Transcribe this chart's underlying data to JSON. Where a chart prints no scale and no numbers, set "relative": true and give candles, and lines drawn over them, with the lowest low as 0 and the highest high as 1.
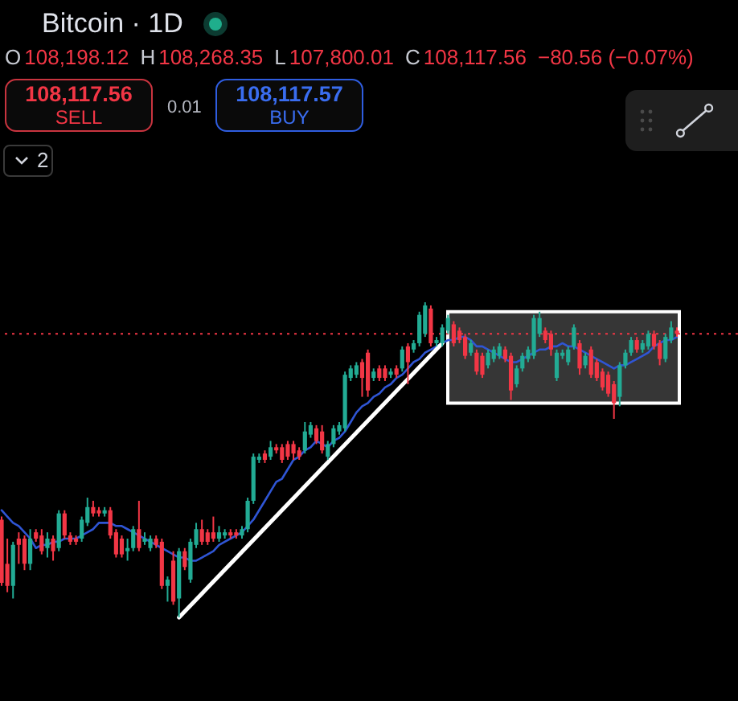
{
  "chart_data": {
    "type": "candlestick",
    "title": "Bitcoin · 1D",
    "annotations": [
      "O",
      "108,198.12",
      "H",
      "108,268.35",
      "L",
      "107,800.01",
      "C",
      "108,117.56",
      "−80.56 (−0.07%)",
      "108,117.56",
      "SELL",
      "0.01",
      "108,117.57",
      "BUY",
      "2"
    ],
    "relative": true,
    "categories": [
      null,
      null,
      null,
      null,
      null,
      null,
      null,
      null,
      null,
      null,
      null,
      null,
      null,
      null,
      null,
      null,
      null,
      null,
      null,
      null,
      null,
      null,
      null,
      null,
      null,
      null,
      null,
      null,
      null,
      null,
      null,
      null,
      null,
      null,
      null,
      null,
      null,
      null,
      null,
      null,
      null,
      null,
      null,
      null,
      null,
      null,
      null,
      null,
      null,
      null,
      null,
      null,
      null,
      null,
      null,
      null,
      null,
      null,
      null,
      null,
      null,
      null,
      null,
      null,
      null,
      null,
      null,
      null,
      null,
      null,
      null,
      null,
      null,
      null,
      null,
      null,
      null,
      null,
      null,
      null,
      null,
      null,
      null,
      null,
      null,
      null,
      null,
      null,
      null,
      null,
      null,
      null,
      null,
      null,
      null,
      null,
      null,
      null,
      null,
      null,
      null,
      null,
      null,
      null,
      null,
      null,
      null,
      null,
      null,
      null,
      null,
      null,
      null,
      null,
      null,
      null,
      null,
      null,
      null
    ],
    "ohlc": [
      [
        0.31,
        0.32,
        0.1,
        0.11
      ],
      [
        0.17,
        0.25,
        0.08,
        0.1
      ],
      [
        0.1,
        0.24,
        0.06,
        0.23
      ],
      [
        0.25,
        0.27,
        0.17,
        0.23
      ],
      [
        0.25,
        0.26,
        0.15,
        0.17
      ],
      [
        0.17,
        0.28,
        0.15,
        0.25
      ],
      [
        0.27,
        0.28,
        0.24,
        0.25
      ],
      [
        0.26,
        0.28,
        0.2,
        0.21
      ],
      [
        0.22,
        0.27,
        0.19,
        0.25
      ],
      [
        0.25,
        0.26,
        0.18,
        0.21
      ],
      [
        0.22,
        0.34,
        0.21,
        0.33
      ],
      [
        0.33,
        0.34,
        0.25,
        0.26
      ],
      [
        0.26,
        0.27,
        0.23,
        0.24
      ],
      [
        0.25,
        0.26,
        0.23,
        0.24
      ],
      [
        0.25,
        0.32,
        0.24,
        0.31
      ],
      [
        0.3,
        0.38,
        0.29,
        0.35
      ],
      [
        0.35,
        0.37,
        0.32,
        0.33
      ],
      [
        0.34,
        0.35,
        0.32,
        0.33
      ],
      [
        0.33,
        0.35,
        0.32,
        0.34
      ],
      [
        0.34,
        0.35,
        0.25,
        0.26
      ],
      [
        0.27,
        0.28,
        0.19,
        0.2
      ],
      [
        0.25,
        0.26,
        0.19,
        0.2
      ],
      [
        0.21,
        0.25,
        0.18,
        0.22
      ],
      [
        0.22,
        0.29,
        0.21,
        0.28
      ],
      [
        0.28,
        0.37,
        0.21,
        0.22
      ],
      [
        0.24,
        0.27,
        0.23,
        0.25
      ],
      [
        0.22,
        0.26,
        0.21,
        0.25
      ],
      [
        0.25,
        0.26,
        0.22,
        0.23
      ],
      [
        0.24,
        0.25,
        0.09,
        0.1
      ],
      [
        0.1,
        0.13,
        0.05,
        0.12
      ],
      [
        0.18,
        0.21,
        0.04,
        0.05
      ],
      [
        0.06,
        0.22,
        0,
        0.21
      ],
      [
        0.21,
        0.22,
        0.15,
        0.16
      ],
      [
        0.12,
        0.25,
        0.11,
        0.24
      ],
      [
        0.23,
        0.3,
        0.22,
        0.28
      ],
      [
        0.28,
        0.31,
        0.23,
        0.24
      ],
      [
        0.27,
        0.28,
        0.23,
        0.24
      ],
      [
        0.27,
        0.32,
        0.24,
        0.25
      ],
      [
        0.25,
        0.29,
        0.24,
        0.27
      ],
      [
        0.26,
        0.28,
        0.25,
        0.27
      ],
      [
        0.27,
        0.28,
        0.25,
        0.26
      ],
      [
        0.27,
        0.28,
        0.25,
        0.26
      ],
      [
        0.26,
        0.29,
        0.25,
        0.28
      ],
      [
        0.28,
        0.38,
        0.27,
        0.37
      ],
      [
        0.37,
        0.52,
        0.36,
        0.51
      ],
      [
        0.5,
        0.52,
        0.49,
        0.51
      ],
      [
        0.52,
        0.53,
        0.49,
        0.5
      ],
      [
        0.51,
        0.56,
        0.5,
        0.54
      ],
      [
        0.54,
        0.55,
        0.52,
        0.53
      ],
      [
        0.54,
        0.55,
        0.49,
        0.5
      ],
      [
        0.55,
        0.56,
        0.5,
        0.51
      ],
      [
        0.55,
        0.56,
        0.5,
        0.52
      ],
      [
        0.53,
        0.54,
        0.5,
        0.51
      ],
      [
        0.53,
        0.62,
        0.52,
        0.59
      ],
      [
        0.58,
        0.62,
        0.57,
        0.61
      ],
      [
        0.6,
        0.61,
        0.55,
        0.56
      ],
      [
        0.59,
        0.61,
        0.52,
        0.53
      ],
      [
        0.51,
        0.56,
        0.5,
        0.55
      ],
      [
        0.55,
        0.61,
        0.54,
        0.6
      ],
      [
        0.59,
        0.62,
        0.58,
        0.61
      ],
      [
        0.6,
        0.78,
        0.59,
        0.77
      ],
      [
        0.76,
        0.8,
        0.75,
        0.79
      ],
      [
        0.77,
        0.81,
        0.76,
        0.8
      ],
      [
        0.81,
        0.82,
        0.7,
        0.76
      ],
      [
        0.84,
        0.85,
        0.7,
        0.72
      ],
      [
        0.76,
        0.79,
        0.75,
        0.78
      ],
      [
        0.79,
        0.8,
        0.75,
        0.76
      ],
      [
        0.79,
        0.8,
        0.75,
        0.76
      ],
      [
        0.77,
        0.79,
        0.76,
        0.78
      ],
      [
        0.79,
        0.8,
        0.76,
        0.77
      ],
      [
        0.79,
        0.86,
        0.78,
        0.85
      ],
      [
        0.86,
        0.87,
        0.74,
        0.81
      ],
      [
        0.85,
        0.88,
        0.84,
        0.87
      ],
      [
        0.87,
        0.97,
        0.86,
        0.96
      ],
      [
        0.9,
        1,
        0.89,
        0.99
      ],
      [
        0.98,
        0.99,
        0.86,
        0.87
      ],
      [
        0.87,
        0.89,
        0.86,
        0.88
      ],
      [
        0.87,
        0.93,
        0.86,
        0.92
      ],
      [
        0.91,
        0.96,
        0.9,
        0.95
      ],
      [
        0.93,
        0.94,
        0.86,
        0.87
      ],
      [
        0.91,
        0.92,
        0.87,
        0.88
      ],
      [
        0.89,
        0.9,
        0.82,
        0.83
      ],
      [
        0.84,
        0.88,
        0.83,
        0.87
      ],
      [
        0.84,
        0.85,
        0.77,
        0.78
      ],
      [
        0.83,
        0.84,
        0.76,
        0.77
      ],
      [
        0.8,
        0.85,
        0.79,
        0.84
      ],
      [
        0.82,
        0.86,
        0.81,
        0.85
      ],
      [
        0.83,
        0.87,
        0.82,
        0.86
      ],
      [
        0.85,
        0.86,
        0.81,
        0.82
      ],
      [
        0.83,
        0.84,
        0.69,
        0.72
      ],
      [
        0.74,
        0.8,
        0.73,
        0.79
      ],
      [
        0.79,
        0.84,
        0.78,
        0.83
      ],
      [
        0.82,
        0.86,
        0.81,
        0.85
      ],
      [
        0.83,
        0.96,
        0.82,
        0.95
      ],
      [
        0.9,
        0.97,
        0.89,
        0.95
      ],
      [
        0.91,
        0.92,
        0.87,
        0.88
      ],
      [
        0.9,
        0.91,
        0.83,
        0.85
      ],
      [
        0.76,
        0.85,
        0.75,
        0.84
      ],
      [
        0.83,
        0.85,
        0.82,
        0.84
      ],
      [
        0.81,
        0.86,
        0.8,
        0.85
      ],
      [
        0.86,
        0.93,
        0.85,
        0.92
      ],
      [
        0.87,
        0.88,
        0.77,
        0.79
      ],
      [
        0.8,
        0.84,
        0.79,
        0.83
      ],
      [
        0.85,
        0.86,
        0.76,
        0.77
      ],
      [
        0.81,
        0.82,
        0.75,
        0.76
      ],
      [
        0.78,
        0.79,
        0.72,
        0.73
      ],
      [
        0.77,
        0.78,
        0.7,
        0.71
      ],
      [
        0.74,
        0.75,
        0.63,
        0.68
      ],
      [
        0.7,
        0.81,
        0.67,
        0.8
      ],
      [
        0.8,
        0.85,
        0.79,
        0.84
      ],
      [
        0.84,
        0.89,
        0.83,
        0.88
      ],
      [
        0.88,
        0.89,
        0.84,
        0.85
      ],
      [
        0.85,
        0.88,
        0.84,
        0.87
      ],
      [
        0.86,
        0.91,
        0.85,
        0.9
      ],
      [
        0.9,
        0.91,
        0.85,
        0.86
      ],
      [
        0.87,
        0.88,
        0.8,
        0.82
      ],
      [
        0.82,
        0.9,
        0.81,
        0.89
      ],
      [
        0.88,
        0.94,
        0.87,
        0.92
      ],
      [
        0.91,
        0.92,
        0.89,
        0.9
      ]
    ],
    "colors": [
      "#f23645",
      "#f23645",
      "#22ab94",
      "#f23645",
      "#f23645",
      "#22ab94",
      "#f23645",
      "#f23645",
      "#22ab94",
      "#f23645",
      "#22ab94",
      "#f23645",
      "#f23645",
      "#f23645",
      "#22ab94",
      "#22ab94",
      "#f23645",
      "#f23645",
      "#22ab94",
      "#f23645",
      "#f23645",
      "#f23645",
      "#22ab94",
      "#22ab94",
      "#f23645",
      "#22ab94",
      "#22ab94",
      "#f23645",
      "#f23645",
      "#22ab94",
      "#f23645",
      "#22ab94",
      "#f23645",
      "#22ab94",
      "#22ab94",
      "#f23645",
      "#f23645",
      "#f23645",
      "#22ab94",
      "#22ab94",
      "#f23645",
      "#f23645",
      "#22ab94",
      "#22ab94",
      "#22ab94",
      "#22ab94",
      "#f23645",
      "#22ab94",
      "#f23645",
      "#f23645",
      "#f23645",
      "#f23645",
      "#f23645",
      "#22ab94",
      "#22ab94",
      "#f23645",
      "#f23645",
      "#22ab94",
      "#22ab94",
      "#22ab94",
      "#22ab94",
      "#22ab94",
      "#22ab94",
      "#f23645",
      "#f23645",
      "#22ab94",
      "#f23645",
      "#f23645",
      "#22ab94",
      "#f23645",
      "#22ab94",
      "#f23645",
      "#22ab94",
      "#22ab94",
      "#22ab94",
      "#f23645",
      "#22ab94",
      "#22ab94",
      "#22ab94",
      "#f23645",
      "#f23645",
      "#f23645",
      "#22ab94",
      "#f23645",
      "#f23645",
      "#22ab94",
      "#22ab94",
      "#22ab94",
      "#f23645",
      "#f23645",
      "#22ab94",
      "#22ab94",
      "#22ab94",
      "#22ab94",
      "#22ab94",
      "#f23645",
      "#f23645",
      "#22ab94",
      "#22ab94",
      "#22ab94",
      "#22ab94",
      "#f23645",
      "#22ab94",
      "#f23645",
      "#f23645",
      "#f23645",
      "#f23645",
      "#f23645",
      "#22ab94",
      "#22ab94",
      "#22ab94",
      "#f23645",
      "#22ab94",
      "#22ab94",
      "#f23645",
      "#f23645",
      "#22ab94",
      "#22ab94",
      "#f23645"
    ],
    "series": [
      {
        "type": "line",
        "color": "#2f55d4",
        "values": [
          0.34,
          0.32,
          0.3,
          0.29,
          0.27,
          0.25,
          0.22,
          0.23,
          0.23,
          0.24,
          0.24,
          0.25,
          0.25,
          0.25,
          0.26,
          0.27,
          0.28,
          0.3,
          0.3,
          0.3,
          0.29,
          0.29,
          0.28,
          0.27,
          0.26,
          0.25,
          0.24,
          0.23,
          0.22,
          0.21,
          0.2,
          0.19,
          0.19,
          0.18,
          0.18,
          0.19,
          0.2,
          0.21,
          0.23,
          0.24,
          0.25,
          0.26,
          0.27,
          0.29,
          0.31,
          0.34,
          0.37,
          0.4,
          0.43,
          0.44,
          0.47,
          0.5,
          0.51,
          0.53,
          0.54,
          0.56,
          0.55,
          0.54,
          0.56,
          0.57,
          0.59,
          0.62,
          0.65,
          0.67,
          0.68,
          0.7,
          0.71,
          0.73,
          0.74,
          0.76,
          0.77,
          0.79,
          0.81,
          0.82,
          0.84,
          0.85,
          0.86,
          0.87,
          0.88,
          0.88,
          0.89,
          0.89,
          0.88,
          0.86,
          0.86,
          0.85,
          0.84,
          0.83,
          0.82,
          0.81,
          0.81,
          0.82,
          0.83,
          0.84,
          0.85,
          0.85,
          0.86,
          0.86,
          0.87,
          0.86,
          0.86,
          0.85,
          0.84,
          0.83,
          0.82,
          0.81,
          0.8,
          0.79,
          0.8,
          0.8,
          0.81,
          0.82,
          0.83,
          0.84,
          0.86,
          0.87,
          0.88,
          0.88,
          0.89
        ]
      },
      {
        "type": "line",
        "color": "#ffffff",
        "values": [
          null,
          null,
          null,
          null,
          null,
          null,
          null,
          null,
          null,
          null,
          null,
          null,
          null,
          null,
          null,
          null,
          null,
          null,
          null,
          null,
          null,
          null,
          null,
          null,
          null,
          null,
          null,
          null,
          null,
          null,
          null,
          0,
          null,
          null,
          null,
          null,
          null,
          null,
          null,
          null,
          null,
          null,
          null,
          null,
          null,
          null,
          null,
          null,
          null,
          null,
          null,
          null,
          null,
          null,
          null,
          null,
          null,
          null,
          null,
          null,
          null,
          null,
          null,
          null,
          null,
          null,
          null,
          null,
          null,
          null,
          null,
          null,
          null,
          null,
          null,
          null,
          null,
          0.87,
          null,
          null,
          null,
          null,
          null,
          null,
          null,
          null,
          null,
          null,
          null,
          null,
          null,
          null,
          null,
          null,
          null,
          null,
          null,
          null,
          null,
          null,
          null,
          null,
          null,
          null,
          null,
          null,
          null,
          null,
          null,
          null,
          null,
          null,
          null,
          null,
          null,
          null,
          null,
          null,
          null
        ]
      }
    ],
    "ref_lines": [
      {
        "axis": "y",
        "value": 0.9,
        "color": "#f23645",
        "line_style": "dotted"
      }
    ],
    "bands": [
      {
        "axis": "y",
        "from": 0.68,
        "to": 0.97,
        "color": "#363636"
      }
    ]
  }
}
